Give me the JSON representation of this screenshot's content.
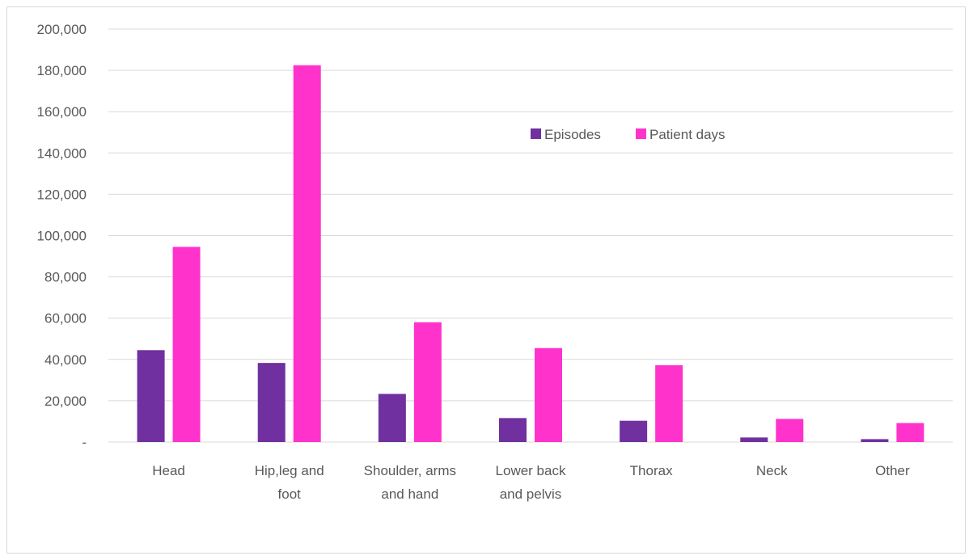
{
  "chart_data": {
    "type": "bar",
    "title": "",
    "xlabel": "",
    "ylabel": "",
    "categories": [
      [
        "Head"
      ],
      [
        "Hip,leg and",
        "foot"
      ],
      [
        "Shoulder, arms",
        "and hand"
      ],
      [
        "Lower back",
        "and pelvis"
      ],
      [
        "Thorax"
      ],
      [
        "Neck"
      ],
      [
        "Other"
      ]
    ],
    "series": [
      {
        "name": "Episodes",
        "color": "#7030a0",
        "values": [
          44500,
          38300,
          23300,
          11600,
          10300,
          2200,
          1400
        ]
      },
      {
        "name": "Patient days",
        "color": "#ff33cc",
        "values": [
          94500,
          182500,
          58000,
          45500,
          37200,
          11200,
          9200
        ]
      }
    ],
    "ylim": [
      0,
      200000
    ],
    "yticks": [
      0,
      20000,
      40000,
      60000,
      80000,
      100000,
      120000,
      140000,
      160000,
      180000,
      200000
    ],
    "ytick_labels": [
      "-",
      "20,000",
      "40,000",
      "60,000",
      "80,000",
      "100,000",
      "120,000",
      "140,000",
      "160,000",
      "180,000",
      "200,000"
    ],
    "grid": true,
    "legend": "top-center-right inside plot"
  }
}
